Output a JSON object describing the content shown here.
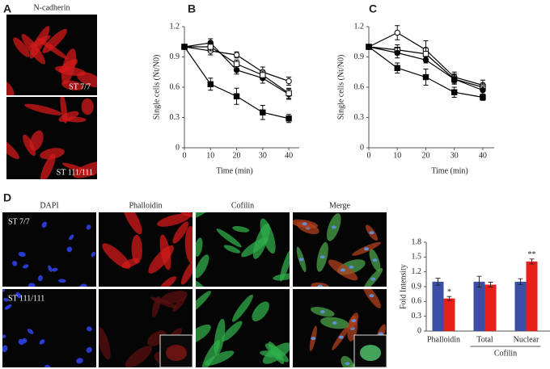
{
  "panel_labels": [
    "A",
    "B",
    "C",
    "D"
  ],
  "panel_a": {
    "title": "N-cadherin",
    "labels": [
      "ST 7/7",
      "ST 111/111"
    ]
  },
  "panel_d": {
    "columns": [
      "DAPI",
      "Phalloidin",
      "Cofilin",
      "Merge"
    ],
    "rows": [
      "ST 7/7",
      "ST 111/111"
    ]
  },
  "chart_data": [
    {
      "type": "line",
      "xlabel": "Time (min)",
      "ylabel": "Single cells (Nt/N0)",
      "x": [
        0,
        10,
        20,
        30,
        40
      ],
      "xlim": [
        0,
        44
      ],
      "xticks": [
        0,
        10,
        20,
        30,
        40
      ],
      "ylim": [
        0,
        1.2
      ],
      "yticks": [
        0,
        0.3,
        0.6,
        0.9,
        1.2
      ],
      "series": [
        {
          "marker": "filled-circle",
          "color": "#000000",
          "values": [
            1.0,
            1.04,
            0.77,
            0.69,
            0.53
          ],
          "errors": [
            0.02,
            0.04,
            0.04,
            0.05,
            0.05
          ]
        },
        {
          "marker": "open-circle",
          "color": "#000000",
          "values": [
            1.0,
            0.96,
            0.92,
            0.75,
            0.66
          ],
          "errors": [
            0.02,
            0.04,
            0.03,
            0.05,
            0.04
          ]
        },
        {
          "marker": "open-square",
          "color": "#000000",
          "values": [
            1.0,
            1.0,
            0.83,
            0.72,
            0.54
          ],
          "errors": [
            0.02,
            0.04,
            0.04,
            0.04,
            0.05
          ]
        },
        {
          "marker": "filled-square",
          "color": "#000000",
          "values": [
            1.0,
            0.63,
            0.51,
            0.35,
            0.29
          ],
          "errors": [
            0.02,
            0.06,
            0.08,
            0.07,
            0.04
          ]
        }
      ]
    },
    {
      "type": "line",
      "xlabel": "Time (min)",
      "ylabel": "Single cells (Nt/N0)",
      "x": [
        0,
        10,
        20,
        30,
        40
      ],
      "xlim": [
        0,
        44
      ],
      "xticks": [
        0,
        10,
        20,
        30,
        40
      ],
      "ylim": [
        0,
        1.2
      ],
      "yticks": [
        0,
        0.3,
        0.6,
        0.9,
        1.2
      ],
      "series": [
        {
          "marker": "open-circle",
          "color": "#000000",
          "values": [
            1.0,
            1.14,
            0.97,
            0.7,
            0.62
          ],
          "errors": [
            0.02,
            0.07,
            0.09,
            0.05,
            0.05
          ]
        },
        {
          "marker": "open-square",
          "color": "#000000",
          "values": [
            1.0,
            0.97,
            0.93,
            0.68,
            0.6
          ],
          "errors": [
            0.02,
            0.05,
            0.06,
            0.05,
            0.04
          ]
        },
        {
          "marker": "filled-circle",
          "color": "#000000",
          "values": [
            1.0,
            0.94,
            0.87,
            0.68,
            0.57
          ],
          "errors": [
            0.02,
            0.05,
            0.03,
            0.04,
            0.04
          ]
        },
        {
          "marker": "filled-square",
          "color": "#000000",
          "values": [
            1.0,
            0.79,
            0.7,
            0.55,
            0.5
          ],
          "errors": [
            0.02,
            0.05,
            0.08,
            0.05,
            0.03
          ]
        }
      ]
    },
    {
      "type": "bar",
      "ylabel": "Fold Intensity",
      "categories": [
        "Phalloidin",
        "Total",
        "Nuclear"
      ],
      "category_group": "Cofilin",
      "ylim": [
        0,
        1.8
      ],
      "yticks": [
        0,
        0.3,
        0.6,
        0.9,
        1.2,
        1.5,
        1.8
      ],
      "series": [
        {
          "color": "#3b4fa6",
          "values": [
            1.0,
            1.0,
            1.0
          ],
          "errors": [
            0.07,
            0.11,
            0.06
          ]
        },
        {
          "color": "#e8201c",
          "values": [
            0.66,
            0.94,
            1.41
          ],
          "errors": [
            0.04,
            0.05,
            0.05
          ],
          "annotations": [
            "*",
            null,
            "**"
          ]
        }
      ]
    }
  ]
}
